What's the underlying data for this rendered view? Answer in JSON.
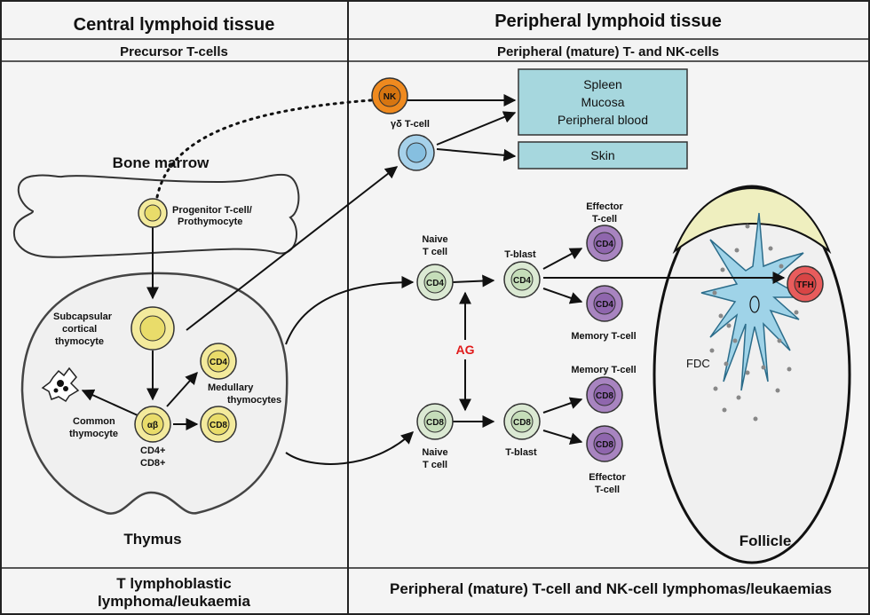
{
  "headers": {
    "central": "Central lymphoid tissue",
    "peripheral": "Peripheral lymphoid tissue",
    "precursor": "Precursor T-cells",
    "peripheral_mature": "Peripheral (mature) T- and NK-cells"
  },
  "footer": {
    "left_line1": "T lymphoblastic",
    "left_line2": "lymphoma/leukaemia",
    "right": "Peripheral (mature) T-cell and NK-cell lymphomas/leukaemias"
  },
  "bone_marrow": {
    "title": "Bone marrow",
    "progenitor_line1": "Progenitor T-cell/",
    "progenitor_line2": "Prothymocyte"
  },
  "thymus": {
    "title": "Thymus",
    "subcapsular_line1": "Subcapsular",
    "subcapsular_line2": "cortical",
    "subcapsular_line3": "thymocyte",
    "common_line1": "Common",
    "common_line2": "thymocyte",
    "alphabeta": "αβ",
    "cd4plus": "CD4+",
    "cd8plus": "CD8+",
    "medullary_line1": "Medullary",
    "medullary_line2": "thymocytes",
    "cd4": "CD4",
    "cd8": "CD8"
  },
  "peripheral": {
    "nk": "NK",
    "gd_tcell": "γδ T-cell",
    "spleen_box": [
      "Spleen",
      "Mucosa",
      "Peripheral blood"
    ],
    "skin_box": "Skin",
    "naive_top_line1": "Naive",
    "naive_top_line2": "T cell",
    "naive_bottom_line1": "Naive",
    "naive_bottom_line2": "T cell",
    "tblast_top": "T-blast",
    "tblast_bottom": "T-blast",
    "effector_top_line1": "Effector",
    "effector_top_line2": "T-cell",
    "memory_top": "Memory T-cell",
    "memory_bottom": "Memory T-cell",
    "effector_bottom_line1": "Effector",
    "effector_bottom_line2": "T-cell",
    "ag": "AG",
    "cd4": "CD4",
    "cd8": "CD8"
  },
  "follicle": {
    "title": "Follicle",
    "fdc": "FDC",
    "tfh": "TFH"
  },
  "colors": {
    "yellow_fill": "#f3ea9c",
    "yellow_nucleus": "#e9dc6a",
    "green_fill": "#dbe9d3",
    "purple_fill": "#a884c0",
    "purple_nucleus": "#8f66ad",
    "blue_fill": "#a6d1ea",
    "orange_fill": "#ef8a1f",
    "red_fill": "#e85c5c",
    "teal_box": "#a6d7de",
    "fdc_blue": "#9fd3e8",
    "follicle_cap": "#efefbf"
  }
}
